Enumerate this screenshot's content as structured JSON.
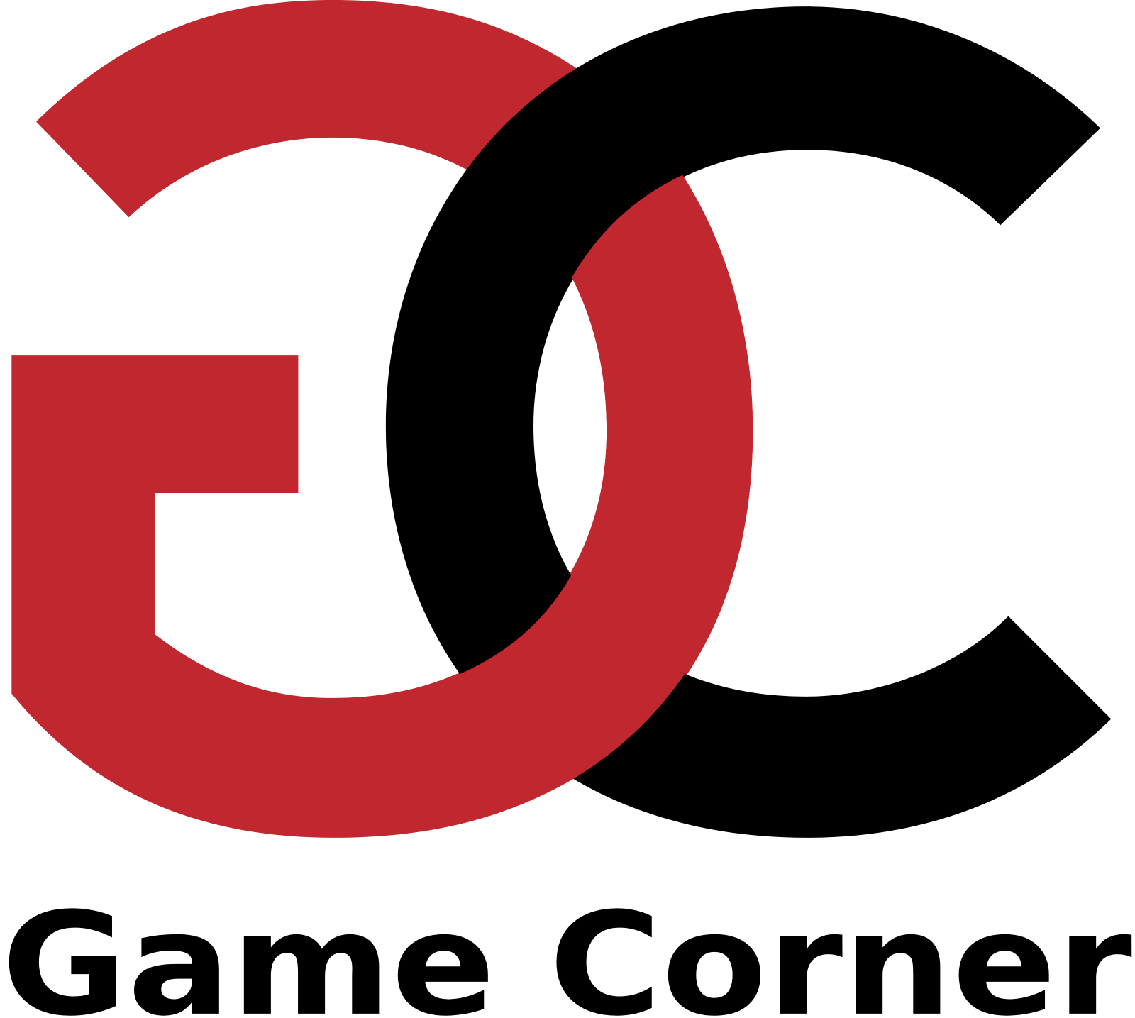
{
  "brand_name": "Game Corner"
}
